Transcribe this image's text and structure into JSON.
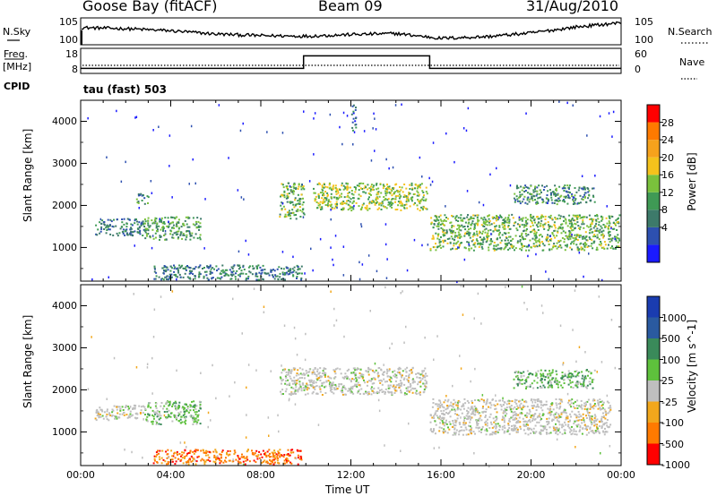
{
  "header": {
    "station": "Goose Bay (fitACF)",
    "beam": "Beam 09",
    "date": "31/Aug/2010"
  },
  "side_labels": {
    "nsky": "N.Sky",
    "nsearch": "N.Search",
    "freq": "Freq.",
    "mhz": "[MHz]",
    "nave": "Nave",
    "cpid": "CPID",
    "tau": "tau (fast) 503"
  },
  "colors": {
    "power_scale": [
      "#1a1aff",
      "#2d50b0",
      "#3d7a6a",
      "#3f9a55",
      "#7ac13c",
      "#f4c21c",
      "#f6a21c",
      "#ff7a00",
      "#ff0000"
    ],
    "velocity_scale": [
      "#1a3cb0",
      "#2a5aa0",
      "#3a8a5a",
      "#5ec13c",
      "#bfbfbf",
      "#f2a71c",
      "#ff7a00",
      "#ff0000"
    ]
  },
  "chart_data": [
    {
      "type": "line",
      "name": "noise-panel",
      "y_ticks_left": [
        "10^5",
        "10^0"
      ],
      "y_ticks_right": [
        "10^5",
        "10^0"
      ],
      "x": [
        0,
        2,
        4,
        6,
        8,
        10,
        12,
        14,
        16,
        18,
        20,
        22,
        24
      ],
      "series": [
        {
          "name": "N.Sky",
          "values": [
            3.2,
            3.0,
            2.6,
            2.0,
            1.7,
            1.6,
            1.9,
            2.1,
            1.2,
            1.5,
            2.2,
            3.3,
            4.1
          ]
        }
      ],
      "ylim": [
        0,
        5
      ]
    },
    {
      "type": "line",
      "name": "frequency-panel",
      "y_ticks_left": [
        "18",
        "8"
      ],
      "y_ticks_right": [
        "60",
        "0"
      ],
      "x": [
        0,
        9.9,
        9.9,
        15.5,
        15.5,
        24
      ],
      "series": [
        {
          "name": "Freq.",
          "values": [
            10,
            10,
            15,
            15,
            10,
            10
          ]
        }
      ],
      "ylim": [
        8,
        18
      ]
    },
    {
      "type": "heatmap",
      "name": "power-panel",
      "ylabel": "Slant Range [km]",
      "xlabel": "",
      "xlim": [
        0,
        24
      ],
      "ylim": [
        200,
        4500
      ],
      "y_ticks": [
        "4000",
        "3000",
        "2000",
        "1000"
      ],
      "colorbar_label": "Power [dB]",
      "colorbar_ticks": [
        "28",
        "24",
        "20",
        "16",
        "12",
        "8",
        "4"
      ],
      "colorbar_range": [
        0,
        32
      ],
      "features": [
        {
          "t0": 0.6,
          "t1": 2.8,
          "r0": 1300,
          "r1": 1700,
          "value": 8
        },
        {
          "t0": 2.8,
          "t1": 5.3,
          "r0": 1200,
          "r1": 1750,
          "value": 12
        },
        {
          "t0": 2.4,
          "t1": 3.0,
          "r0": 2050,
          "r1": 2300,
          "value": 10
        },
        {
          "t0": 3.2,
          "t1": 9.8,
          "r0": 250,
          "r1": 600,
          "value": 8
        },
        {
          "t0": 8.8,
          "t1": 9.9,
          "r0": 1700,
          "r1": 2550,
          "value": 14
        },
        {
          "t0": 10.3,
          "t1": 15.4,
          "r0": 1900,
          "r1": 2550,
          "value": 16
        },
        {
          "t0": 15.5,
          "t1": 23.9,
          "r0": 950,
          "r1": 1800,
          "value": 14
        },
        {
          "t0": 19.2,
          "t1": 22.8,
          "r0": 2050,
          "r1": 2500,
          "value": 10
        },
        {
          "t0": 12.0,
          "t1": 12.2,
          "r0": 3800,
          "r1": 4450,
          "value": 6
        }
      ]
    },
    {
      "type": "heatmap",
      "name": "velocity-panel",
      "ylabel": "Slant Range [km]",
      "xlabel": "Time UT",
      "x_ticks": [
        "00:00",
        "04:00",
        "08:00",
        "12:00",
        "16:00",
        "20:00",
        "00:00"
      ],
      "xlim": [
        0,
        24
      ],
      "ylim": [
        200,
        4500
      ],
      "y_ticks": [
        "4000",
        "3000",
        "2000",
        "1000"
      ],
      "colorbar_label": "Velocity [m s^-1]",
      "colorbar_ticks": [
        "1000",
        "500",
        "100",
        "25",
        "-25",
        "-100",
        "-500",
        "-1000"
      ],
      "features": [
        {
          "t0": 2.8,
          "t1": 5.3,
          "r0": 1200,
          "r1": 1750,
          "value": 100
        },
        {
          "t0": 0.6,
          "t1": 2.8,
          "r0": 1300,
          "r1": 1650,
          "value": 0
        },
        {
          "t0": 3.2,
          "t1": 9.8,
          "r0": 250,
          "r1": 600,
          "value": -100
        },
        {
          "t0": 8.8,
          "t1": 15.4,
          "r0": 1900,
          "r1": 2550,
          "value": 0
        },
        {
          "t0": 15.5,
          "t1": 23.5,
          "r0": 950,
          "r1": 1800,
          "value": 0
        },
        {
          "t0": 19.2,
          "t1": 22.8,
          "r0": 2050,
          "r1": 2500,
          "value": 100
        }
      ]
    }
  ]
}
